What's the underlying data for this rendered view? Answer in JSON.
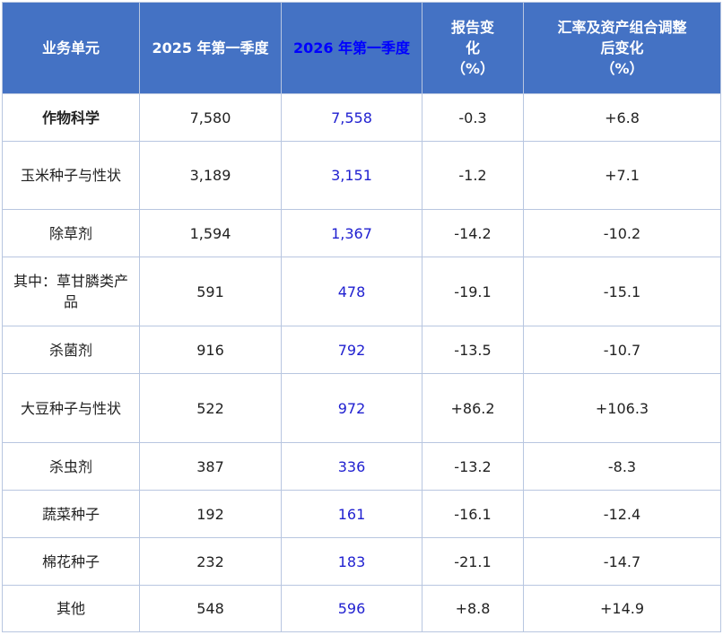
{
  "headers": {
    "unit": "业务单元",
    "q2025": "2025 年第一季度",
    "q2026": "2026 年第一季度",
    "reported": [
      "报告变",
      "化",
      "（%）"
    ],
    "adjusted": [
      "汇率及资产组合调整",
      "后变化",
      "（%）"
    ]
  },
  "rows": [
    {
      "name": "作物科学",
      "v2025": "7,580",
      "v2026": "7,558",
      "reported": "-0.3",
      "adjusted": "+6.8"
    },
    {
      "name": "玉米种子与性状",
      "v2025": "3,189",
      "v2026": "3,151",
      "reported": "-1.2",
      "adjusted": "+7.1"
    },
    {
      "name": "除草剂",
      "v2025": "1,594",
      "v2026": "1,367",
      "reported": "-14.2",
      "adjusted": "-10.2"
    },
    {
      "name": "其中：草甘膦类产品",
      "v2025": "591",
      "v2026": "478",
      "reported": "-19.1",
      "adjusted": "-15.1"
    },
    {
      "name": "杀菌剂",
      "v2025": "916",
      "v2026": "792",
      "reported": "-13.5",
      "adjusted": "-10.7"
    },
    {
      "name": "大豆种子与性状",
      "v2025": "522",
      "v2026": "972",
      "reported": "+86.2",
      "adjusted": "+106.3"
    },
    {
      "name": "杀虫剂",
      "v2025": "387",
      "v2026": "336",
      "reported": "-13.2",
      "adjusted": "-8.3"
    },
    {
      "name": "蔬菜种子",
      "v2025": "192",
      "v2026": "161",
      "reported": "-16.1",
      "adjusted": "-12.4"
    },
    {
      "name": "棉花种子",
      "v2025": "232",
      "v2026": "183",
      "reported": "-21.1",
      "adjusted": "-14.7"
    },
    {
      "name": "其他",
      "v2025": "548",
      "v2026": "596",
      "reported": "+8.8",
      "adjusted": "+14.9"
    }
  ],
  "colors": {
    "header_bg": "#4472c4",
    "header_text": "#ffffff",
    "highlight_header_text": "#0000ff",
    "highlight_column_text": "#1f1fd0",
    "border": "#b8c6e0"
  }
}
